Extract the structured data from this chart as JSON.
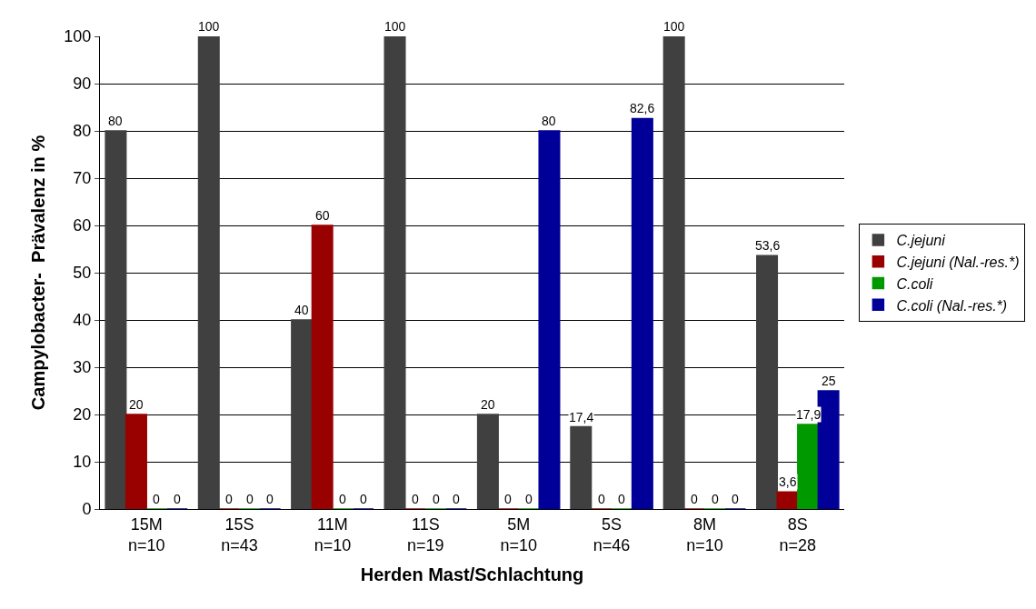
{
  "chart_data": {
    "type": "bar",
    "xlabel": "Herden Mast/Schlachtung",
    "ylabel": "Campylobacter-  Prävalenz in %",
    "categories": [
      "15M\nn=10",
      "15S\nn=43",
      "11M\nn=10",
      "11S\nn=19",
      "5M\nn=10",
      "5S\nn=46",
      "8M\nn=10",
      "8S\nn=28"
    ],
    "series": [
      {
        "name": "C.jejuni",
        "color": "#404040",
        "values": [
          80,
          100,
          40,
          100,
          20,
          17.4,
          100,
          53.6
        ],
        "value_labels": [
          "80",
          "100",
          "40",
          "100",
          "20",
          "17,4",
          "100",
          "53,6"
        ]
      },
      {
        "name": "C.jejuni (Nal.-res.*)",
        "color": "#990000",
        "values": [
          20,
          0,
          60,
          0,
          0,
          0,
          0,
          3.6
        ],
        "value_labels": [
          "20",
          "0",
          "60",
          "0",
          "0",
          "0",
          "0",
          "3,6"
        ]
      },
      {
        "name": "C.coli",
        "color": "#009900",
        "values": [
          0,
          0,
          0,
          0,
          0,
          0,
          0,
          17.9
        ],
        "value_labels": [
          "0",
          "0",
          "0",
          "0",
          "0",
          "0",
          "0",
          "17,9"
        ]
      },
      {
        "name": "C.coli (Nal.-res.*)",
        "color": "#000099",
        "values": [
          0,
          0,
          0,
          0,
          80,
          82.6,
          0,
          25
        ],
        "value_labels": [
          "0",
          "0",
          "0",
          "0",
          "80",
          "82,6",
          "0",
          "25"
        ]
      }
    ],
    "ylim": [
      0,
      100
    ],
    "yticks": [
      0,
      10,
      20,
      30,
      40,
      50,
      60,
      70,
      80,
      90,
      100
    ],
    "grid": "y",
    "legend": "right"
  }
}
